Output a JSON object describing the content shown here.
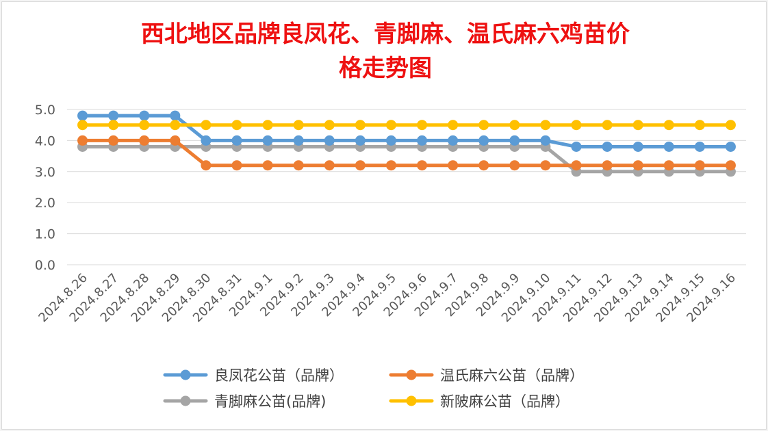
{
  "chart_data": {
    "type": "line",
    "title": "西北地区品牌良凤花、青脚麻、温氏麻六鸡苗价格走势图",
    "title_lines": [
      "西北地区品牌良凤花、青脚麻、温氏麻六鸡苗价",
      "格走势图"
    ],
    "xlabel": "",
    "ylabel": "",
    "ylim": [
      0,
      5
    ],
    "y_ticks": [
      "0.0",
      "1.0",
      "2.0",
      "3.0",
      "4.0",
      "5.0"
    ],
    "grid": "horizontal",
    "legend_position": "bottom",
    "categories": [
      "2024.8.26",
      "2024.8.27",
      "2024.8.28",
      "2024.8.29",
      "2024.8.30",
      "2024.8.31",
      "2024.9.1",
      "2024.9.2",
      "2024.9.3",
      "2024.9.4",
      "2024.9.5",
      "2024.9.6",
      "2024.9.7",
      "2024.9.8",
      "2024.9.9",
      "2024.9.10",
      "2024.9.11",
      "2024.9.12",
      "2024.9.13",
      "2024.9.14",
      "2024.9.15",
      "2024.9.16"
    ],
    "series": [
      {
        "name": "良凤花公苗（品牌）",
        "color": "#5b9bd5",
        "values": [
          4.8,
          4.8,
          4.8,
          4.8,
          4.0,
          4.0,
          4.0,
          4.0,
          4.0,
          4.0,
          4.0,
          4.0,
          4.0,
          4.0,
          4.0,
          4.0,
          3.8,
          3.8,
          3.8,
          3.8,
          3.8,
          3.8
        ]
      },
      {
        "name": "温氏麻六公苗（品牌）",
        "color": "#ed7d31",
        "values": [
          4.0,
          4.0,
          4.0,
          4.0,
          3.2,
          3.2,
          3.2,
          3.2,
          3.2,
          3.2,
          3.2,
          3.2,
          3.2,
          3.2,
          3.2,
          3.2,
          3.2,
          3.2,
          3.2,
          3.2,
          3.2,
          3.2
        ]
      },
      {
        "name": "青脚麻公苗(品牌)",
        "color": "#a5a5a5",
        "values": [
          3.8,
          3.8,
          3.8,
          3.8,
          3.8,
          3.8,
          3.8,
          3.8,
          3.8,
          3.8,
          3.8,
          3.8,
          3.8,
          3.8,
          3.8,
          3.8,
          3.0,
          3.0,
          3.0,
          3.0,
          3.0,
          3.0
        ]
      },
      {
        "name": "新陂麻公苗（品牌）",
        "color": "#ffc000",
        "values": [
          4.5,
          4.5,
          4.5,
          4.5,
          4.5,
          4.5,
          4.5,
          4.5,
          4.5,
          4.5,
          4.5,
          4.5,
          4.5,
          4.5,
          4.5,
          4.5,
          4.5,
          4.5,
          4.5,
          4.5,
          4.5,
          4.5
        ]
      }
    ],
    "legend_order": [
      0,
      1,
      2,
      3
    ]
  }
}
